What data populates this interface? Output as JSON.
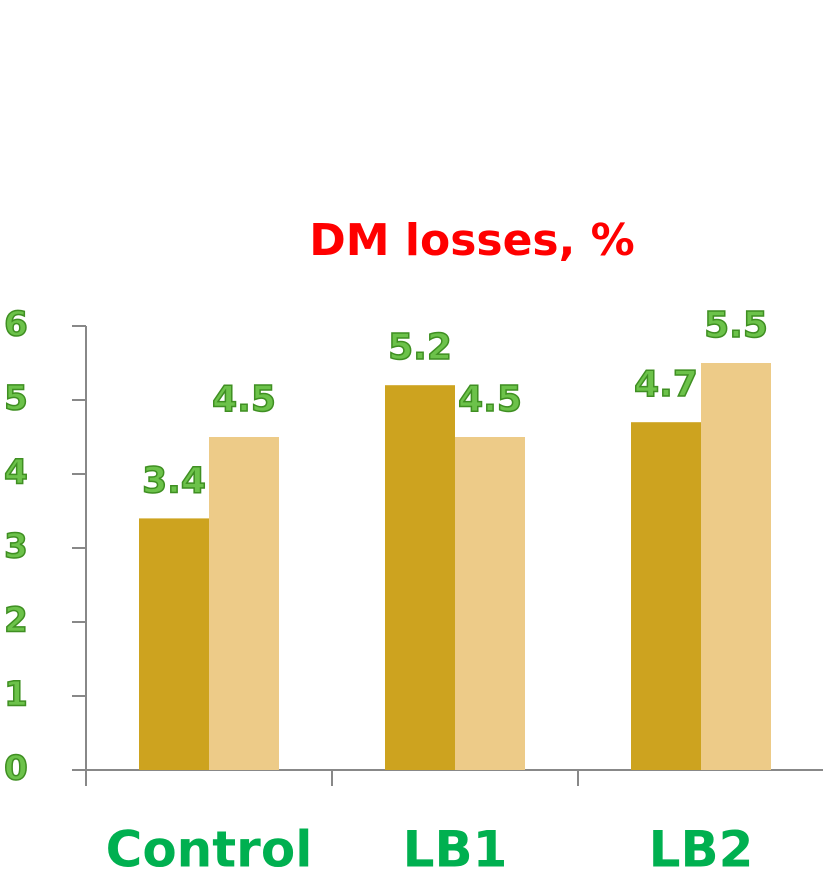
{
  "chart_data": {
    "type": "bar",
    "title": "DM losses, %",
    "categories": [
      "Control",
      "LB1",
      "LB2"
    ],
    "series": [
      {
        "color": "#cda31f",
        "values": [
          3.4,
          5.2,
          4.7
        ]
      },
      {
        "color": "#edcb88",
        "values": [
          4.5,
          4.5,
          5.5
        ]
      }
    ],
    "ylim": [
      0,
      6
    ],
    "yticks": [
      0,
      1,
      2,
      3,
      4,
      5,
      6
    ]
  }
}
